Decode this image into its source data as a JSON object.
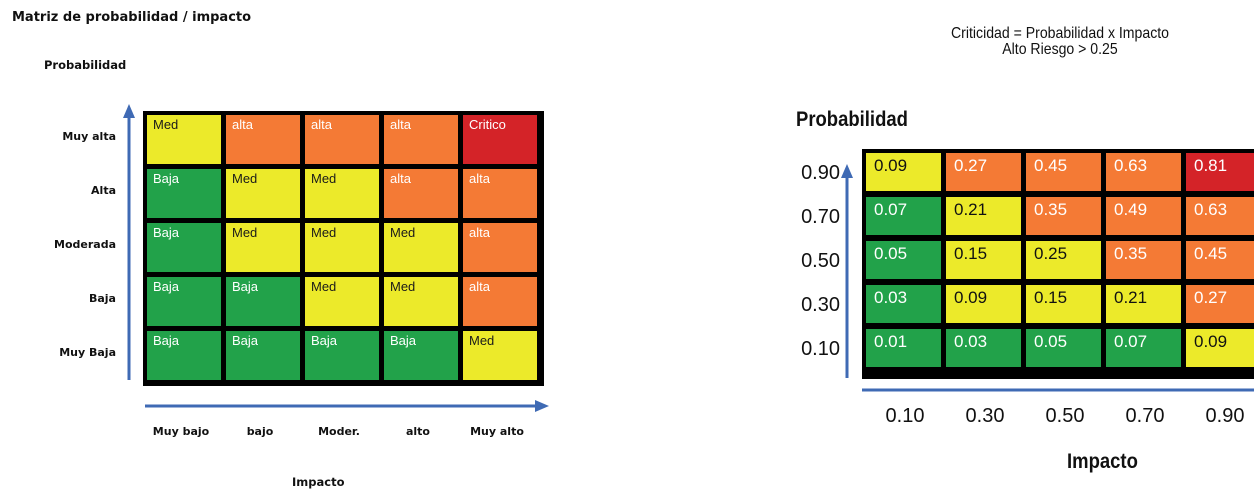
{
  "left_matrix": {
    "title": "Matriz de probabilidad / impacto",
    "y_axis_label": "Probabilidad",
    "x_axis_label": "Impacto",
    "rows": [
      "Muy alta",
      "Alta",
      "Moderada",
      "Baja",
      "Muy Baja"
    ],
    "columns": [
      "Muy bajo",
      "bajo",
      "Moder.",
      "alto",
      "Muy alto"
    ],
    "cells": [
      [
        "Med",
        "alta",
        "alta",
        "alta",
        "Critico"
      ],
      [
        "Baja",
        "Med",
        "Med",
        "alta",
        "alta"
      ],
      [
        "Baja",
        "Med",
        "Med",
        "Med",
        "alta"
      ],
      [
        "Baja",
        "Baja",
        "Med",
        "Med",
        "alta"
      ],
      [
        "Baja",
        "Baja",
        "Baja",
        "Baja",
        "Med"
      ]
    ],
    "colors": [
      [
        "yellow",
        "orange",
        "orange",
        "orange",
        "red"
      ],
      [
        "green",
        "yellow",
        "yellow",
        "orange",
        "orange"
      ],
      [
        "green",
        "yellow",
        "yellow",
        "yellow",
        "orange"
      ],
      [
        "green",
        "green",
        "yellow",
        "yellow",
        "orange"
      ],
      [
        "green",
        "green",
        "green",
        "green",
        "yellow"
      ]
    ]
  },
  "right_matrix": {
    "formula_line1": "Criticidad = Probabilidad x Impacto",
    "formula_line2": "Alto Riesgo > 0.25",
    "y_axis_label": "Probabilidad",
    "x_axis_label": "Impacto",
    "rows": [
      "0.90",
      "0.70",
      "0.50",
      "0.30",
      "0.10"
    ],
    "columns": [
      "0.10",
      "0.30",
      "0.50",
      "0.70",
      "0.90"
    ],
    "cells": [
      [
        "0.09",
        "0.27",
        "0.45",
        "0.63",
        "0.81"
      ],
      [
        "0.07",
        "0.21",
        "0.35",
        "0.49",
        "0.63"
      ],
      [
        "0.05",
        "0.15",
        "0.25",
        "0.35",
        "0.45"
      ],
      [
        "0.03",
        "0.09",
        "0.15",
        "0.21",
        "0.27"
      ],
      [
        "0.01",
        "0.03",
        "0.05",
        "0.07",
        "0.09"
      ]
    ],
    "colors": [
      [
        "yellow",
        "orange",
        "orange",
        "orange",
        "red"
      ],
      [
        "green",
        "yellow",
        "orange",
        "orange",
        "orange"
      ],
      [
        "green",
        "yellow",
        "yellow",
        "orange",
        "orange"
      ],
      [
        "green",
        "yellow",
        "yellow",
        "yellow",
        "orange"
      ],
      [
        "green",
        "green",
        "green",
        "green",
        "yellow"
      ]
    ]
  },
  "palette": {
    "green": "#22a24a",
    "yellow": "#ecea2a",
    "orange": "#f47a35",
    "red": "#d42328",
    "arrow": "#3f6ab4"
  }
}
